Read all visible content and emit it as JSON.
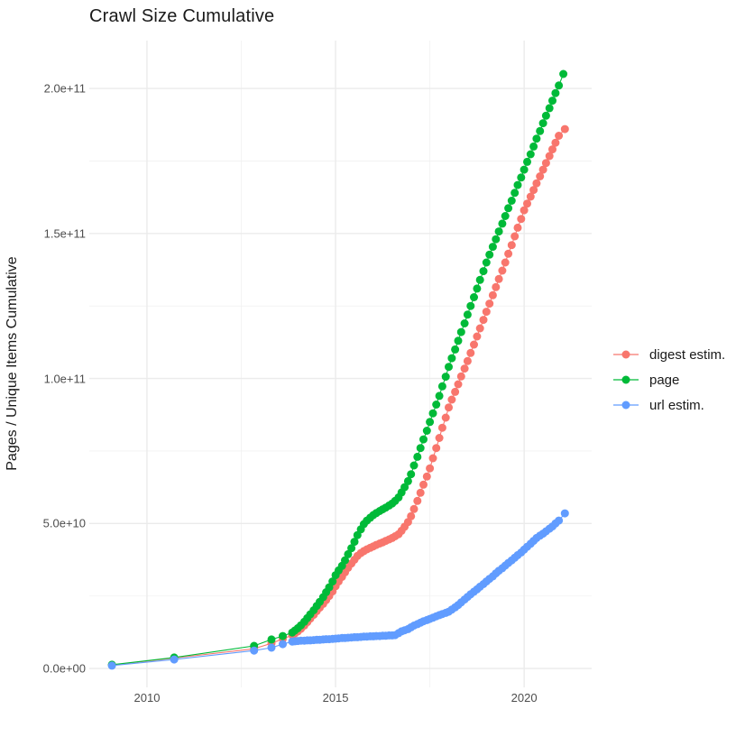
{
  "title": "Crawl Size Cumulative",
  "colors": {
    "background": "#FFFFFF",
    "grid_major": "#EBEBEB",
    "grid_minor": "#F1F1F1",
    "axis_text": "#4D4D4D",
    "title_text": "#1A1A1A",
    "digest": "#F8766D",
    "page": "#00BA38",
    "url": "#619CFF"
  },
  "legend": {
    "position": "right",
    "items": [
      "digest estim.",
      "page",
      "url estim."
    ]
  },
  "chart_data": {
    "type": "line",
    "title": "Crawl Size Cumulative",
    "xlabel": "",
    "ylabel": "Pages / Unique Items Cumulative",
    "y_unit": "pages, values in billions (1e9)",
    "grid": true,
    "legend_position": "right",
    "x_ticks": {
      "labels": [
        "2010",
        "2015",
        "2020"
      ],
      "values": [
        2010,
        2015,
        2020
      ]
    },
    "x_minor": [
      2012.5,
      2017.5
    ],
    "y_ticks": {
      "labels": [
        "0.0e+00",
        "5.0e+10",
        "1.0e+11",
        "1.5e+11",
        "2.0e+11"
      ],
      "values": [
        0,
        50,
        100,
        150,
        200
      ]
    },
    "y_minor": [
      25,
      75,
      125,
      175
    ],
    "xlim": [
      2008.47,
      2021.79
    ],
    "ylim": [
      -6.5,
      216.5
    ],
    "series": [
      {
        "name": "digest estim.",
        "color": "#F8766D",
        "points": [
          [
            2009.07,
            1.2
          ],
          [
            2010.72,
            3.6
          ],
          [
            2012.84,
            6.8
          ],
          [
            2013.3,
            8.7
          ],
          [
            2013.6,
            10.2
          ],
          [
            2013.85,
            11.5
          ],
          [
            2013.92,
            12.1
          ],
          [
            2014.0,
            12.8
          ],
          [
            2014.08,
            13.7
          ],
          [
            2014.17,
            14.8
          ],
          [
            2014.25,
            16.0
          ],
          [
            2014.33,
            17.2
          ],
          [
            2014.42,
            18.5
          ],
          [
            2014.5,
            19.8
          ],
          [
            2014.58,
            21.0
          ],
          [
            2014.67,
            22.3
          ],
          [
            2014.75,
            23.6
          ],
          [
            2014.83,
            25.0
          ],
          [
            2014.92,
            26.6
          ],
          [
            2015.0,
            28.4
          ],
          [
            2015.08,
            30.0
          ],
          [
            2015.17,
            31.6
          ],
          [
            2015.25,
            33.2
          ],
          [
            2015.33,
            34.7
          ],
          [
            2015.42,
            36.2
          ],
          [
            2015.5,
            37.5
          ],
          [
            2015.58,
            38.8
          ],
          [
            2015.67,
            39.8
          ],
          [
            2015.75,
            40.5
          ],
          [
            2015.83,
            41.1
          ],
          [
            2015.92,
            41.6
          ],
          [
            2016.0,
            42.1
          ],
          [
            2016.08,
            42.6
          ],
          [
            2016.17,
            43.1
          ],
          [
            2016.25,
            43.5
          ],
          [
            2016.33,
            44.0
          ],
          [
            2016.42,
            44.5
          ],
          [
            2016.5,
            45.0
          ],
          [
            2016.58,
            45.6
          ],
          [
            2016.67,
            46.3
          ],
          [
            2016.75,
            47.5
          ],
          [
            2016.83,
            48.9
          ],
          [
            2016.92,
            50.5
          ],
          [
            2017.0,
            52.5
          ],
          [
            2017.08,
            55.0
          ],
          [
            2017.17,
            57.8
          ],
          [
            2017.25,
            60.6
          ],
          [
            2017.33,
            63.4
          ],
          [
            2017.42,
            66.2
          ],
          [
            2017.5,
            69.0
          ],
          [
            2017.58,
            72.5
          ],
          [
            2017.67,
            76.0
          ],
          [
            2017.75,
            79.5
          ],
          [
            2017.83,
            83.0
          ],
          [
            2017.92,
            86.5
          ],
          [
            2018.0,
            90.0
          ],
          [
            2018.08,
            92.7
          ],
          [
            2018.17,
            95.4
          ],
          [
            2018.25,
            98.0
          ],
          [
            2018.33,
            100.7
          ],
          [
            2018.42,
            103.4
          ],
          [
            2018.5,
            106.0
          ],
          [
            2018.58,
            108.8
          ],
          [
            2018.67,
            111.7
          ],
          [
            2018.75,
            114.5
          ],
          [
            2018.83,
            117.3
          ],
          [
            2018.92,
            120.2
          ],
          [
            2019.0,
            123.0
          ],
          [
            2019.08,
            125.8
          ],
          [
            2019.17,
            128.7
          ],
          [
            2019.25,
            131.5
          ],
          [
            2019.33,
            134.3
          ],
          [
            2019.42,
            137.2
          ],
          [
            2019.5,
            140.0
          ],
          [
            2019.58,
            143.0
          ],
          [
            2019.67,
            146.0
          ],
          [
            2019.75,
            149.0
          ],
          [
            2019.83,
            152.0
          ],
          [
            2019.92,
            155.0
          ],
          [
            2020.0,
            158.0
          ],
          [
            2020.08,
            160.3
          ],
          [
            2020.17,
            162.7
          ],
          [
            2020.25,
            165.0
          ],
          [
            2020.33,
            167.3
          ],
          [
            2020.42,
            169.7
          ],
          [
            2020.5,
            172.0
          ],
          [
            2020.58,
            174.3
          ],
          [
            2020.67,
            176.7
          ],
          [
            2020.75,
            179.0
          ],
          [
            2020.83,
            181.3
          ],
          [
            2020.92,
            183.7
          ],
          [
            2021.08,
            186.0
          ]
        ]
      },
      {
        "name": "page",
        "color": "#00BA38",
        "points": [
          [
            2009.07,
            1.3
          ],
          [
            2010.72,
            3.8
          ],
          [
            2012.84,
            7.8
          ],
          [
            2013.3,
            10.0
          ],
          [
            2013.6,
            11.2
          ],
          [
            2013.85,
            12.4
          ],
          [
            2013.92,
            13.1
          ],
          [
            2014.0,
            13.9
          ],
          [
            2014.08,
            14.9
          ],
          [
            2014.17,
            16.1
          ],
          [
            2014.25,
            17.4
          ],
          [
            2014.33,
            18.7
          ],
          [
            2014.42,
            20.1
          ],
          [
            2014.5,
            21.6
          ],
          [
            2014.58,
            23.0
          ],
          [
            2014.67,
            24.6
          ],
          [
            2014.75,
            26.3
          ],
          [
            2014.83,
            28.0
          ],
          [
            2014.92,
            30.0
          ],
          [
            2015.0,
            32.2
          ],
          [
            2015.08,
            33.8
          ],
          [
            2015.17,
            35.4
          ],
          [
            2015.25,
            37.3
          ],
          [
            2015.33,
            39.4
          ],
          [
            2015.42,
            41.5
          ],
          [
            2015.5,
            43.7
          ],
          [
            2015.58,
            46.0
          ],
          [
            2015.67,
            48.0
          ],
          [
            2015.75,
            49.8
          ],
          [
            2015.83,
            51.0
          ],
          [
            2015.92,
            52.0
          ],
          [
            2016.0,
            52.9
          ],
          [
            2016.08,
            53.6
          ],
          [
            2016.17,
            54.3
          ],
          [
            2016.25,
            54.9
          ],
          [
            2016.33,
            55.5
          ],
          [
            2016.42,
            56.2
          ],
          [
            2016.5,
            56.9
          ],
          [
            2016.58,
            57.8
          ],
          [
            2016.67,
            59.0
          ],
          [
            2016.75,
            60.7
          ],
          [
            2016.83,
            62.5
          ],
          [
            2016.92,
            64.6
          ],
          [
            2017.0,
            67.0
          ],
          [
            2017.08,
            70.0
          ],
          [
            2017.17,
            73.0
          ],
          [
            2017.25,
            76.0
          ],
          [
            2017.33,
            79.0
          ],
          [
            2017.42,
            82.0
          ],
          [
            2017.5,
            85.0
          ],
          [
            2017.58,
            88.0
          ],
          [
            2017.67,
            91.0
          ],
          [
            2017.75,
            94.0
          ],
          [
            2017.83,
            97.3
          ],
          [
            2017.92,
            100.6
          ],
          [
            2018.0,
            104.0
          ],
          [
            2018.08,
            107.0
          ],
          [
            2018.17,
            110.0
          ],
          [
            2018.25,
            113.0
          ],
          [
            2018.33,
            116.0
          ],
          [
            2018.42,
            119.0
          ],
          [
            2018.5,
            122.0
          ],
          [
            2018.58,
            125.0
          ],
          [
            2018.67,
            128.0
          ],
          [
            2018.75,
            131.0
          ],
          [
            2018.83,
            134.0
          ],
          [
            2018.92,
            137.0
          ],
          [
            2019.0,
            140.0
          ],
          [
            2019.08,
            142.7
          ],
          [
            2019.17,
            145.4
          ],
          [
            2019.25,
            148.0
          ],
          [
            2019.33,
            150.7
          ],
          [
            2019.42,
            153.4
          ],
          [
            2019.5,
            156.0
          ],
          [
            2019.58,
            158.7
          ],
          [
            2019.67,
            161.3
          ],
          [
            2019.75,
            164.0
          ],
          [
            2019.83,
            166.7
          ],
          [
            2019.92,
            169.3
          ],
          [
            2020.0,
            172.0
          ],
          [
            2020.08,
            174.7
          ],
          [
            2020.17,
            177.3
          ],
          [
            2020.25,
            180.0
          ],
          [
            2020.33,
            182.7
          ],
          [
            2020.42,
            185.3
          ],
          [
            2020.5,
            188.0
          ],
          [
            2020.58,
            190.6
          ],
          [
            2020.67,
            193.2
          ],
          [
            2020.75,
            195.8
          ],
          [
            2020.83,
            198.4
          ],
          [
            2020.92,
            201.0
          ],
          [
            2021.04,
            205.0
          ]
        ]
      },
      {
        "name": "url estim.",
        "color": "#619CFF",
        "points": [
          [
            2009.07,
            1.0
          ],
          [
            2010.72,
            3.1
          ],
          [
            2012.84,
            6.2
          ],
          [
            2013.3,
            7.2
          ],
          [
            2013.6,
            8.4
          ],
          [
            2013.85,
            9.3
          ],
          [
            2013.92,
            9.4
          ],
          [
            2014.0,
            9.5
          ],
          [
            2014.08,
            9.6
          ],
          [
            2014.17,
            9.6
          ],
          [
            2014.25,
            9.7
          ],
          [
            2014.33,
            9.7
          ],
          [
            2014.42,
            9.8
          ],
          [
            2014.5,
            9.9
          ],
          [
            2014.58,
            9.9
          ],
          [
            2014.67,
            10.0
          ],
          [
            2014.75,
            10.1
          ],
          [
            2014.83,
            10.1
          ],
          [
            2014.92,
            10.2
          ],
          [
            2015.0,
            10.3
          ],
          [
            2015.08,
            10.4
          ],
          [
            2015.17,
            10.5
          ],
          [
            2015.25,
            10.5
          ],
          [
            2015.33,
            10.6
          ],
          [
            2015.42,
            10.7
          ],
          [
            2015.5,
            10.8
          ],
          [
            2015.58,
            10.8
          ],
          [
            2015.67,
            10.9
          ],
          [
            2015.75,
            11.0
          ],
          [
            2015.83,
            11.0
          ],
          [
            2015.92,
            11.1
          ],
          [
            2016.0,
            11.1
          ],
          [
            2016.08,
            11.2
          ],
          [
            2016.17,
            11.2
          ],
          [
            2016.25,
            11.3
          ],
          [
            2016.33,
            11.3
          ],
          [
            2016.42,
            11.4
          ],
          [
            2016.5,
            11.4
          ],
          [
            2016.58,
            11.5
          ],
          [
            2016.67,
            12.2
          ],
          [
            2016.75,
            12.8
          ],
          [
            2016.83,
            13.2
          ],
          [
            2016.92,
            13.6
          ],
          [
            2017.0,
            14.2
          ],
          [
            2017.08,
            14.8
          ],
          [
            2017.17,
            15.3
          ],
          [
            2017.25,
            15.8
          ],
          [
            2017.33,
            16.3
          ],
          [
            2017.42,
            16.7
          ],
          [
            2017.5,
            17.1
          ],
          [
            2017.58,
            17.5
          ],
          [
            2017.67,
            18.0
          ],
          [
            2017.75,
            18.4
          ],
          [
            2017.83,
            18.8
          ],
          [
            2017.92,
            19.2
          ],
          [
            2018.0,
            19.6
          ],
          [
            2018.08,
            20.3
          ],
          [
            2018.17,
            21.1
          ],
          [
            2018.25,
            21.9
          ],
          [
            2018.33,
            22.8
          ],
          [
            2018.42,
            23.8
          ],
          [
            2018.5,
            24.7
          ],
          [
            2018.58,
            25.6
          ],
          [
            2018.67,
            26.5
          ],
          [
            2018.75,
            27.3
          ],
          [
            2018.83,
            28.2
          ],
          [
            2018.92,
            29.1
          ],
          [
            2019.0,
            30.0
          ],
          [
            2019.08,
            30.9
          ],
          [
            2019.17,
            31.8
          ],
          [
            2019.25,
            32.8
          ],
          [
            2019.33,
            33.7
          ],
          [
            2019.42,
            34.6
          ],
          [
            2019.5,
            35.5
          ],
          [
            2019.58,
            36.4
          ],
          [
            2019.67,
            37.3
          ],
          [
            2019.75,
            38.2
          ],
          [
            2019.83,
            39.1
          ],
          [
            2019.92,
            40.0
          ],
          [
            2020.0,
            41.0
          ],
          [
            2020.08,
            42.0
          ],
          [
            2020.17,
            43.0
          ],
          [
            2020.25,
            44.0
          ],
          [
            2020.33,
            45.0
          ],
          [
            2020.42,
            45.8
          ],
          [
            2020.5,
            46.5
          ],
          [
            2020.58,
            47.3
          ],
          [
            2020.67,
            48.2
          ],
          [
            2020.75,
            49.0
          ],
          [
            2020.83,
            50.0
          ],
          [
            2020.92,
            51.0
          ],
          [
            2021.08,
            53.5
          ]
        ]
      }
    ]
  }
}
